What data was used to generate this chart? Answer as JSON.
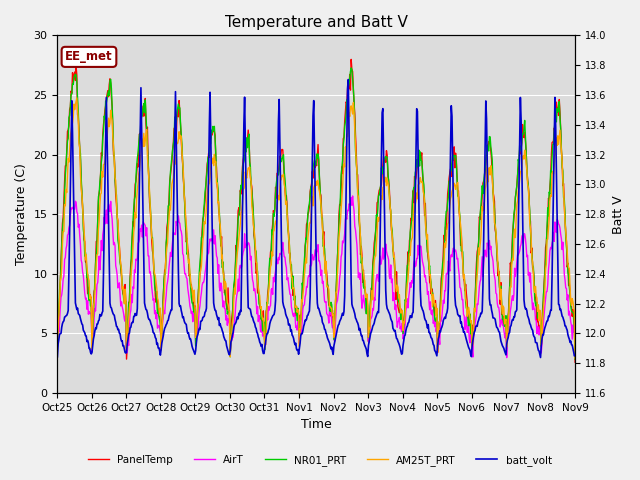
{
  "title": "Temperature and Batt V",
  "xlabel": "Time",
  "ylabel_left": "Temperature (C)",
  "ylabel_right": "Batt V",
  "ylim_left": [
    0,
    30
  ],
  "ylim_right": [
    11.6,
    14.0
  ],
  "xtick_labels": [
    "Oct 25",
    "Oct 26",
    "Oct 27",
    "Oct 28",
    "Oct 29",
    "Oct 30",
    "Oct 31",
    "Nov 1",
    "Nov 2",
    "Nov 3",
    "Nov 4",
    "Nov 5",
    "Nov 6",
    "Nov 7",
    "Nov 8",
    "Nov 9"
  ],
  "annotation_text": "EE_met",
  "annotation_color": "#8B0000",
  "background_color": "#dcdcdc",
  "fig_facecolor": "#f0f0f0",
  "title_fontsize": 11,
  "legend_entries": [
    "PanelTemp",
    "AirT",
    "NR01_PRT",
    "AM25T_PRT",
    "batt_volt"
  ],
  "legend_colors": [
    "#ff0000",
    "#ff00ff",
    "#00cc00",
    "#ffa500",
    "#0000cc"
  ],
  "line_widths": [
    1.0,
    1.0,
    1.0,
    1.0,
    1.2
  ],
  "n_days": 15,
  "yticks_left": [
    0,
    5,
    10,
    15,
    20,
    25,
    30
  ],
  "yticks_right": [
    11.6,
    11.8,
    12.0,
    12.2,
    12.4,
    12.6,
    12.8,
    13.0,
    13.2,
    13.4,
    13.6,
    13.8,
    14.0
  ]
}
